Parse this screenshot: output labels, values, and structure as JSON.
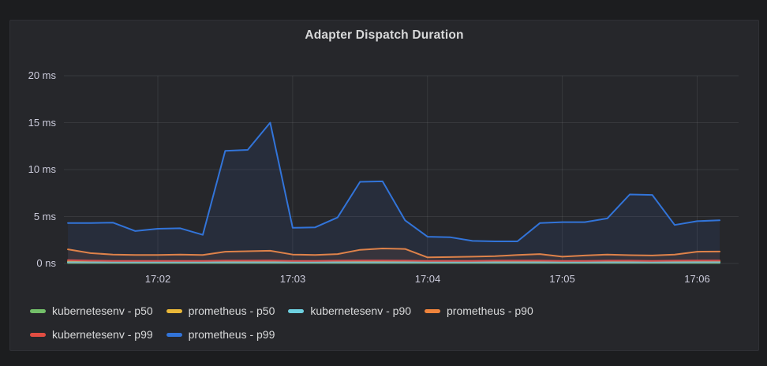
{
  "panel": {
    "title": "Adapter Dispatch Duration"
  },
  "colors": {
    "page_bg": "#1c1d1f",
    "panel_bg": "#26272b",
    "grid": "rgba(204,204,220,0.10)",
    "axis_text": "#ccccdc",
    "title_text": "#d8d9da"
  },
  "chart_data": {
    "type": "line",
    "title": "Adapter Dispatch Duration",
    "xlabel": "",
    "ylabel": "",
    "ylim": [
      0,
      20
    ],
    "grid": true,
    "legend_position": "bottom",
    "y_ticks": [
      "20 ms",
      "15 ms",
      "10 ms",
      "5 ms",
      "0 ns"
    ],
    "y_tick_values": [
      20,
      15,
      10,
      5,
      0
    ],
    "x_ticks": [
      "17:02",
      "17:03",
      "17:04",
      "17:05",
      "17:06"
    ],
    "x_tick_indices": [
      4,
      10,
      16,
      22,
      28
    ],
    "x_times": [
      "17:01:20",
      "17:01:30",
      "17:01:40",
      "17:01:50",
      "17:02:00",
      "17:02:10",
      "17:02:20",
      "17:02:30",
      "17:02:40",
      "17:02:50",
      "17:03:00",
      "17:03:10",
      "17:03:20",
      "17:03:30",
      "17:03:40",
      "17:03:50",
      "17:04:00",
      "17:04:10",
      "17:04:20",
      "17:04:30",
      "17:04:40",
      "17:04:50",
      "17:05:00",
      "17:05:10",
      "17:05:20",
      "17:05:30",
      "17:05:40",
      "17:05:50",
      "17:06:00",
      "17:06:10"
    ],
    "unit": "ms",
    "series": [
      {
        "name": "kubernetesenv - p50",
        "color": "#73BF69",
        "values": [
          0.05,
          0.05,
          0.05,
          0.05,
          0.05,
          0.05,
          0.05,
          0.05,
          0.05,
          0.05,
          0.05,
          0.05,
          0.05,
          0.05,
          0.05,
          0.05,
          0.05,
          0.05,
          0.05,
          0.05,
          0.05,
          0.05,
          0.05,
          0.05,
          0.05,
          0.05,
          0.05,
          0.05,
          0.05,
          0.05
        ]
      },
      {
        "name": "prometheus - p50",
        "color": "#EAB839",
        "values": [
          0.22,
          0.2,
          0.18,
          0.18,
          0.18,
          0.18,
          0.18,
          0.2,
          0.2,
          0.2,
          0.18,
          0.18,
          0.18,
          0.2,
          0.2,
          0.2,
          0.18,
          0.18,
          0.18,
          0.2,
          0.2,
          0.2,
          0.18,
          0.18,
          0.18,
          0.18,
          0.18,
          0.2,
          0.22,
          0.22
        ]
      },
      {
        "name": "kubernetesenv - p90",
        "color": "#6ED0E0",
        "values": [
          0.13,
          0.12,
          0.12,
          0.12,
          0.12,
          0.12,
          0.12,
          0.12,
          0.12,
          0.12,
          0.12,
          0.12,
          0.12,
          0.12,
          0.12,
          0.12,
          0.12,
          0.12,
          0.12,
          0.12,
          0.12,
          0.12,
          0.12,
          0.12,
          0.12,
          0.12,
          0.12,
          0.12,
          0.13,
          0.13
        ]
      },
      {
        "name": "prometheus - p90",
        "color": "#EF843C",
        "values": [
          1.5,
          1.1,
          0.95,
          0.9,
          0.9,
          0.95,
          0.9,
          1.25,
          1.3,
          1.35,
          0.95,
          0.9,
          1.0,
          1.45,
          1.6,
          1.55,
          0.65,
          0.68,
          0.72,
          0.78,
          0.9,
          1.0,
          0.72,
          0.85,
          0.95,
          0.88,
          0.85,
          0.95,
          1.25,
          1.27
        ]
      },
      {
        "name": "kubernetesenv - p99",
        "color": "#E24D42",
        "values": [
          0.35,
          0.3,
          0.28,
          0.28,
          0.28,
          0.28,
          0.28,
          0.3,
          0.3,
          0.32,
          0.28,
          0.28,
          0.3,
          0.32,
          0.32,
          0.3,
          0.28,
          0.28,
          0.28,
          0.3,
          0.3,
          0.3,
          0.28,
          0.28,
          0.3,
          0.3,
          0.28,
          0.3,
          0.32,
          0.32
        ]
      },
      {
        "name": "prometheus - p99",
        "color": "#3274D9",
        "values": [
          4.3,
          4.3,
          4.35,
          3.45,
          3.7,
          3.75,
          3.05,
          12.0,
          12.1,
          15.0,
          3.8,
          3.85,
          4.9,
          8.7,
          8.75,
          4.6,
          2.85,
          2.8,
          2.4,
          2.35,
          2.35,
          4.3,
          4.4,
          4.4,
          4.8,
          7.35,
          7.3,
          4.1,
          4.5,
          4.6
        ]
      }
    ]
  }
}
